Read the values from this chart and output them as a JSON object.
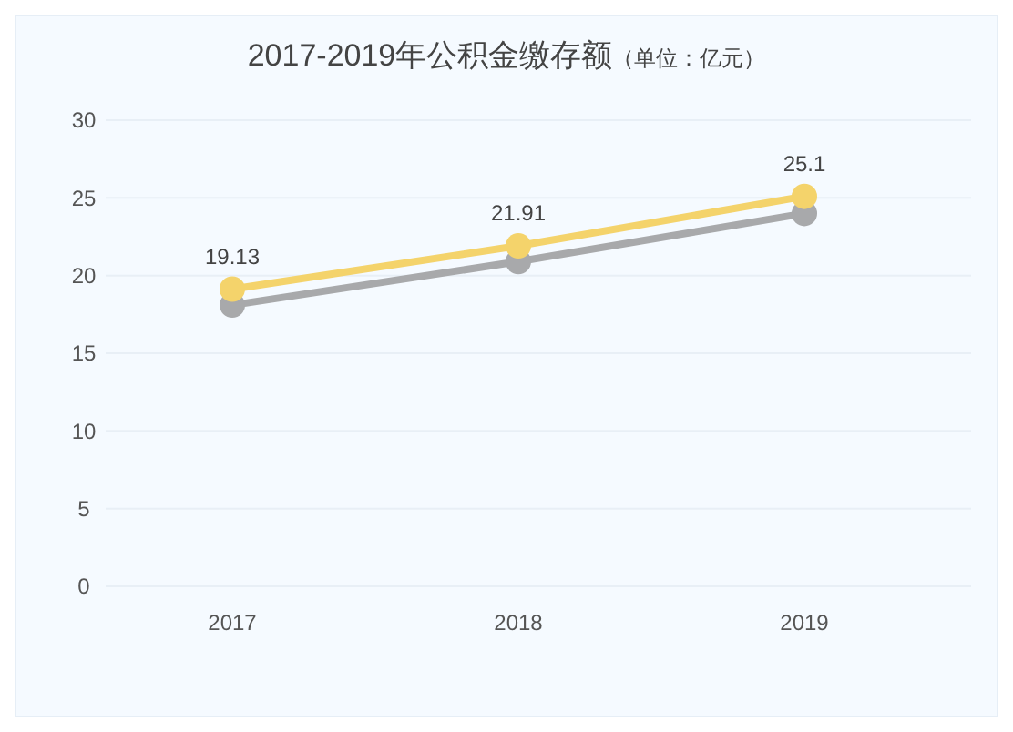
{
  "chart_data": {
    "type": "line",
    "title": "2017-2019年公积金缴存额",
    "subtitle": "（单位：亿元）",
    "categories": [
      "2017",
      "2018",
      "2019"
    ],
    "series": [
      {
        "color": "#a8a9ab",
        "values": [
          18.1,
          20.9,
          24.0
        ]
      },
      {
        "color": "#f4d36b",
        "values": [
          19.13,
          21.91,
          25.1
        ],
        "value_labels": [
          "19.13",
          "21.91",
          "25.1"
        ]
      }
    ],
    "ylim": [
      0,
      30
    ],
    "yticks": [
      0,
      5,
      10,
      15,
      20,
      25,
      30
    ],
    "grid": "y",
    "marker": "circle",
    "line_style": "solid"
  }
}
